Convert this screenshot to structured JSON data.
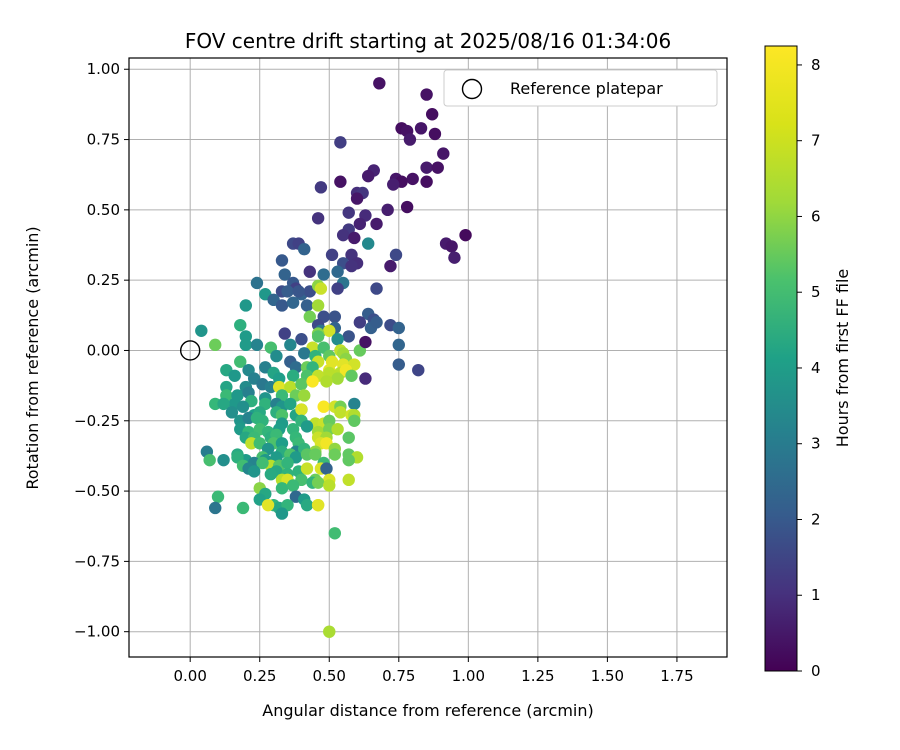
{
  "chart_data": {
    "type": "scatter",
    "title": "FOV centre drift starting at 2025/08/16 01:34:06",
    "xlabel": "Angular distance from reference (arcmin)",
    "ylabel": "Rotation from reference (arcmin)",
    "xlim": [
      -0.22,
      1.93
    ],
    "ylim": [
      -1.09,
      1.04
    ],
    "xticks": [
      "0.00",
      "0.25",
      "0.50",
      "0.75",
      "1.00",
      "1.25",
      "1.50",
      "1.75"
    ],
    "yticks": [
      "1.00",
      "0.75",
      "0.50",
      "0.25",
      "0.00",
      "−0.25",
      "−0.50",
      "−0.75",
      "−1.00"
    ],
    "grid": true,
    "legend": {
      "placement": "top-right",
      "entries": [
        "Reference platepar"
      ]
    },
    "reference_point": {
      "x": 0.0,
      "y": 0.0
    },
    "colorbar": {
      "label": "Hours from first FF file",
      "ticks": [
        "0",
        "1",
        "2",
        "3",
        "4",
        "5",
        "6",
        "7",
        "8"
      ],
      "range": [
        0,
        8.25
      ],
      "colormap": "viridis"
    },
    "points": [
      [
        0.68,
        0.95,
        0.4
      ],
      [
        0.85,
        0.91,
        0.4
      ],
      [
        0.87,
        0.84,
        0.3
      ],
      [
        0.76,
        0.79,
        0.3
      ],
      [
        0.78,
        0.78,
        0.4
      ],
      [
        0.83,
        0.79,
        0.5
      ],
      [
        0.88,
        0.77,
        0.3
      ],
      [
        0.79,
        0.75,
        0.6
      ],
      [
        0.54,
        0.74,
        1.5
      ],
      [
        0.91,
        0.7,
        0.5
      ],
      [
        0.85,
        0.65,
        0.6
      ],
      [
        0.89,
        0.65,
        0.4
      ],
      [
        0.66,
        0.64,
        0.8
      ],
      [
        0.64,
        0.62,
        0.6
      ],
      [
        0.74,
        0.61,
        0.5
      ],
      [
        0.8,
        0.61,
        0.4
      ],
      [
        0.76,
        0.6,
        0.3
      ],
      [
        0.85,
        0.6,
        0.3
      ],
      [
        0.54,
        0.6,
        0.4
      ],
      [
        0.47,
        0.58,
        1.4
      ],
      [
        0.6,
        0.56,
        1.1
      ],
      [
        0.62,
        0.56,
        1.3
      ],
      [
        0.73,
        0.59,
        0.7
      ],
      [
        0.6,
        0.54,
        0.5
      ],
      [
        0.71,
        0.5,
        0.7
      ],
      [
        0.78,
        0.51,
        0.3
      ],
      [
        0.57,
        0.49,
        1.3
      ],
      [
        0.63,
        0.48,
        1.0
      ],
      [
        0.46,
        0.47,
        1.2
      ],
      [
        0.67,
        0.45,
        0.6
      ],
      [
        0.61,
        0.45,
        0.8
      ],
      [
        0.57,
        0.43,
        1.4
      ],
      [
        0.55,
        0.41,
        1.2
      ],
      [
        0.59,
        0.4,
        0.6
      ],
      [
        0.99,
        0.41,
        0.2
      ],
      [
        0.92,
        0.38,
        0.6
      ],
      [
        0.94,
        0.37,
        0.5
      ],
      [
        0.37,
        0.38,
        1.8
      ],
      [
        0.39,
        0.38,
        1.6
      ],
      [
        0.41,
        0.36,
        2.6
      ],
      [
        0.64,
        0.38,
        3.9
      ],
      [
        0.74,
        0.34,
        1.8
      ],
      [
        0.58,
        0.34,
        1.2
      ],
      [
        0.51,
        0.34,
        1.6
      ],
      [
        0.55,
        0.31,
        2.0
      ],
      [
        0.6,
        0.31,
        1.1
      ],
      [
        0.33,
        0.32,
        2.3
      ],
      [
        0.95,
        0.33,
        0.7
      ],
      [
        0.72,
        0.3,
        0.6
      ],
      [
        0.53,
        0.28,
        2.8
      ],
      [
        0.58,
        0.3,
        1.2
      ],
      [
        0.34,
        0.27,
        2.6
      ],
      [
        0.43,
        0.28,
        1.2
      ],
      [
        0.48,
        0.27,
        2.9
      ],
      [
        0.37,
        0.24,
        2.3
      ],
      [
        0.24,
        0.24,
        3.1
      ],
      [
        0.38,
        0.22,
        1.6
      ],
      [
        0.33,
        0.21,
        1.9
      ],
      [
        0.35,
        0.21,
        2.4
      ],
      [
        0.4,
        0.2,
        2.6
      ],
      [
        0.43,
        0.21,
        2.0
      ],
      [
        0.46,
        0.23,
        6.8
      ],
      [
        0.47,
        0.22,
        7.6
      ],
      [
        0.55,
        0.24,
        3.2
      ],
      [
        0.53,
        0.22,
        1.6
      ],
      [
        0.67,
        0.22,
        1.8
      ],
      [
        0.27,
        0.2,
        4.4
      ],
      [
        0.39,
        0.21,
        2.2
      ],
      [
        0.3,
        0.18,
        2.7
      ],
      [
        0.33,
        0.16,
        2.3
      ],
      [
        0.37,
        0.17,
        2.7
      ],
      [
        0.42,
        0.16,
        2.5
      ],
      [
        0.46,
        0.16,
        7.1
      ],
      [
        0.2,
        0.16,
        4.4
      ],
      [
        0.48,
        0.12,
        2.0
      ],
      [
        0.43,
        0.12,
        6.5
      ],
      [
        0.52,
        0.12,
        2.1
      ],
      [
        0.64,
        0.13,
        2.4
      ],
      [
        0.66,
        0.11,
        2.0
      ],
      [
        0.61,
        0.1,
        1.5
      ],
      [
        0.46,
        0.09,
        1.8
      ],
      [
        0.52,
        0.08,
        2.6
      ],
      [
        0.65,
        0.08,
        2.5
      ],
      [
        0.67,
        0.1,
        2.4
      ],
      [
        0.72,
        0.09,
        1.9
      ],
      [
        0.75,
        0.08,
        2.6
      ],
      [
        0.47,
        0.07,
        3.2
      ],
      [
        0.5,
        0.07,
        7.7
      ],
      [
        0.46,
        0.06,
        6.7
      ],
      [
        0.04,
        0.07,
        4.3
      ],
      [
        0.18,
        0.09,
        5.2
      ],
      [
        0.34,
        0.06,
        1.6
      ],
      [
        0.4,
        0.04,
        2.0
      ],
      [
        0.57,
        0.05,
        2.1
      ],
      [
        0.2,
        0.05,
        4.5
      ],
      [
        0.46,
        0.05,
        6.0
      ],
      [
        0.53,
        0.04,
        4.0
      ],
      [
        0.09,
        0.02,
        6.4
      ],
      [
        0.2,
        0.02,
        4.5
      ],
      [
        0.24,
        0.02,
        3.7
      ],
      [
        0.29,
        0.01,
        5.8
      ],
      [
        0.36,
        0.02,
        3.8
      ],
      [
        0.44,
        0.01,
        7.6
      ],
      [
        0.48,
        0.01,
        5.8
      ],
      [
        0.54,
        0.0,
        7.5
      ],
      [
        0.61,
        0.0,
        6.3
      ],
      [
        0.63,
        0.03,
        0.4
      ],
      [
        0.75,
        0.02,
        2.7
      ],
      [
        0.31,
        -0.02,
        4.0
      ],
      [
        0.41,
        -0.01,
        3.3
      ],
      [
        0.45,
        -0.02,
        5.3
      ],
      [
        0.5,
        -0.02,
        6.2
      ],
      [
        0.55,
        -0.01,
        7.1
      ],
      [
        0.56,
        -0.03,
        6.8
      ],
      [
        0.18,
        -0.04,
        5.7
      ],
      [
        0.36,
        -0.04,
        2.5
      ],
      [
        0.46,
        -0.04,
        7.6
      ],
      [
        0.51,
        -0.04,
        7.9
      ],
      [
        0.55,
        -0.05,
        7.9
      ],
      [
        0.59,
        -0.05,
        7.7
      ],
      [
        0.75,
        -0.05,
        2.4
      ],
      [
        0.82,
        -0.07,
        1.7
      ],
      [
        0.13,
        -0.07,
        4.9
      ],
      [
        0.21,
        -0.07,
        3.9
      ],
      [
        0.27,
        -0.06,
        3.6
      ],
      [
        0.38,
        -0.06,
        2.9
      ],
      [
        0.42,
        -0.06,
        6.4
      ],
      [
        0.44,
        -0.06,
        5.4
      ],
      [
        0.5,
        -0.07,
        7.9
      ],
      [
        0.54,
        -0.08,
        7.4
      ],
      [
        0.56,
        -0.07,
        8.1
      ],
      [
        0.16,
        -0.09,
        4.4
      ],
      [
        0.23,
        -0.1,
        3.6
      ],
      [
        0.3,
        -0.08,
        4.8
      ],
      [
        0.32,
        -0.1,
        4.6
      ],
      [
        0.37,
        -0.09,
        5.1
      ],
      [
        0.42,
        -0.09,
        5.9
      ],
      [
        0.46,
        -0.09,
        7.5
      ],
      [
        0.5,
        -0.08,
        7.4
      ],
      [
        0.53,
        -0.1,
        7.1
      ],
      [
        0.58,
        -0.09,
        6.2
      ],
      [
        0.63,
        -0.1,
        1.0
      ],
      [
        0.13,
        -0.13,
        4.8
      ],
      [
        0.2,
        -0.13,
        4.0
      ],
      [
        0.26,
        -0.12,
        3.3
      ],
      [
        0.29,
        -0.13,
        3.6
      ],
      [
        0.32,
        -0.13,
        7.9
      ],
      [
        0.36,
        -0.13,
        7.4
      ],
      [
        0.4,
        -0.12,
        6.1
      ],
      [
        0.44,
        -0.11,
        8.2
      ],
      [
        0.49,
        -0.11,
        7.3
      ],
      [
        0.13,
        -0.16,
        5.6
      ],
      [
        0.17,
        -0.16,
        4.4
      ],
      [
        0.21,
        -0.15,
        3.6
      ],
      [
        0.27,
        -0.17,
        4.3
      ],
      [
        0.33,
        -0.16,
        5.6
      ],
      [
        0.38,
        -0.16,
        6.4
      ],
      [
        0.41,
        -0.16,
        7.0
      ],
      [
        0.16,
        -0.19,
        4.4
      ],
      [
        0.22,
        -0.18,
        5.2
      ],
      [
        0.27,
        -0.19,
        5.3
      ],
      [
        0.31,
        -0.19,
        3.6
      ],
      [
        0.33,
        -0.2,
        4.3
      ],
      [
        0.36,
        -0.19,
        4.8
      ],
      [
        0.4,
        -0.21,
        6.2
      ],
      [
        0.48,
        -0.2,
        8.2
      ],
      [
        0.52,
        -0.2,
        7.7
      ],
      [
        0.54,
        -0.2,
        6.5
      ],
      [
        0.59,
        -0.19,
        3.7
      ],
      [
        0.09,
        -0.19,
        5.5
      ],
      [
        0.12,
        -0.19,
        4.9
      ],
      [
        0.15,
        -0.22,
        4.1
      ],
      [
        0.19,
        -0.2,
        4.1
      ],
      [
        0.23,
        -0.23,
        4.6
      ],
      [
        0.25,
        -0.22,
        5.0
      ],
      [
        0.31,
        -0.22,
        5.2
      ],
      [
        0.33,
        -0.23,
        5.9
      ],
      [
        0.38,
        -0.23,
        4.8
      ],
      [
        0.4,
        -0.21,
        7.8
      ],
      [
        0.54,
        -0.22,
        7.5
      ],
      [
        0.58,
        -0.23,
        7.7
      ],
      [
        0.59,
        -0.23,
        7.3
      ],
      [
        0.18,
        -0.25,
        4.3
      ],
      [
        0.21,
        -0.24,
        3.7
      ],
      [
        0.24,
        -0.24,
        5.3
      ],
      [
        0.26,
        -0.25,
        5.3
      ],
      [
        0.33,
        -0.26,
        4.5
      ],
      [
        0.4,
        -0.25,
        5.4
      ],
      [
        0.45,
        -0.26,
        7.5
      ],
      [
        0.48,
        -0.26,
        7.6
      ],
      [
        0.5,
        -0.25,
        6.3
      ],
      [
        0.59,
        -0.25,
        6.2
      ],
      [
        0.18,
        -0.28,
        4.5
      ],
      [
        0.21,
        -0.29,
        5.5
      ],
      [
        0.25,
        -0.28,
        5.7
      ],
      [
        0.28,
        -0.29,
        5.4
      ],
      [
        0.32,
        -0.28,
        4.6
      ],
      [
        0.37,
        -0.28,
        5.4
      ],
      [
        0.42,
        -0.27,
        4.5
      ],
      [
        0.46,
        -0.29,
        7.1
      ],
      [
        0.5,
        -0.28,
        6.5
      ],
      [
        0.53,
        -0.28,
        7.3
      ],
      [
        0.2,
        -0.31,
        4.9
      ],
      [
        0.23,
        -0.31,
        5.6
      ],
      [
        0.29,
        -0.31,
        5.2
      ],
      [
        0.31,
        -0.3,
        5.6
      ],
      [
        0.38,
        -0.31,
        5.5
      ],
      [
        0.46,
        -0.31,
        7.6
      ],
      [
        0.49,
        -0.31,
        7.1
      ],
      [
        0.57,
        -0.31,
        6.1
      ],
      [
        0.22,
        -0.33,
        7.5
      ],
      [
        0.25,
        -0.33,
        5.7
      ],
      [
        0.3,
        -0.33,
        5.9
      ],
      [
        0.33,
        -0.33,
        4.6
      ],
      [
        0.39,
        -0.33,
        5.6
      ],
      [
        0.47,
        -0.33,
        7.8
      ],
      [
        0.49,
        -0.33,
        8.1
      ],
      [
        0.06,
        -0.36,
        3.5
      ],
      [
        0.28,
        -0.35,
        4.3
      ],
      [
        0.33,
        -0.36,
        5.1
      ],
      [
        0.38,
        -0.36,
        3.8
      ],
      [
        0.41,
        -0.35,
        5.4
      ],
      [
        0.45,
        -0.36,
        6.9
      ],
      [
        0.52,
        -0.35,
        6.9
      ],
      [
        0.17,
        -0.37,
        5.0
      ],
      [
        0.2,
        -0.39,
        4.5
      ],
      [
        0.26,
        -0.38,
        5.8
      ],
      [
        0.31,
        -0.38,
        4.5
      ],
      [
        0.36,
        -0.37,
        5.9
      ],
      [
        0.38,
        -0.38,
        4.5
      ],
      [
        0.42,
        -0.37,
        6.1
      ],
      [
        0.45,
        -0.37,
        6.3
      ],
      [
        0.52,
        -0.37,
        6.4
      ],
      [
        0.57,
        -0.37,
        6.2
      ],
      [
        0.6,
        -0.38,
        7.3
      ],
      [
        0.07,
        -0.39,
        5.8
      ],
      [
        0.12,
        -0.39,
        4.1
      ],
      [
        0.17,
        -0.38,
        5.2
      ],
      [
        0.23,
        -0.4,
        3.7
      ],
      [
        0.27,
        -0.39,
        4.4
      ],
      [
        0.29,
        -0.41,
        7.4
      ],
      [
        0.32,
        -0.41,
        6.0
      ],
      [
        0.35,
        -0.4,
        5.4
      ],
      [
        0.48,
        -0.4,
        5.6
      ],
      [
        0.57,
        -0.39,
        6.2
      ],
      [
        0.19,
        -0.41,
        5.7
      ],
      [
        0.21,
        -0.42,
        3.8
      ],
      [
        0.26,
        -0.4,
        5.7
      ],
      [
        0.31,
        -0.43,
        4.9
      ],
      [
        0.35,
        -0.44,
        5.3
      ],
      [
        0.39,
        -0.43,
        5.3
      ],
      [
        0.42,
        -0.42,
        7.6
      ],
      [
        0.47,
        -0.42,
        7.8
      ],
      [
        0.49,
        -0.42,
        2.6
      ],
      [
        0.23,
        -0.43,
        4.3
      ],
      [
        0.29,
        -0.44,
        5.0
      ],
      [
        0.33,
        -0.46,
        7.4
      ],
      [
        0.35,
        -0.46,
        7.8
      ],
      [
        0.4,
        -0.46,
        5.8
      ],
      [
        0.45,
        -0.46,
        6.4
      ],
      [
        0.5,
        -0.46,
        7.8
      ],
      [
        0.57,
        -0.46,
        7.5
      ],
      [
        0.25,
        -0.49,
        6.8
      ],
      [
        0.27,
        -0.51,
        4.9
      ],
      [
        0.33,
        -0.49,
        5.5
      ],
      [
        0.37,
        -0.48,
        5.6
      ],
      [
        0.38,
        -0.52,
        2.8
      ],
      [
        0.44,
        -0.47,
        5.4
      ],
      [
        0.46,
        -0.47,
        6.5
      ],
      [
        0.5,
        -0.48,
        7.4
      ],
      [
        0.1,
        -0.52,
        5.6
      ],
      [
        0.25,
        -0.53,
        4.7
      ],
      [
        0.3,
        -0.55,
        5.4
      ],
      [
        0.32,
        -0.56,
        4.9
      ],
      [
        0.35,
        -0.55,
        5.4
      ],
      [
        0.41,
        -0.53,
        4.5
      ],
      [
        0.42,
        -0.55,
        5.0
      ],
      [
        0.46,
        -0.55,
        7.7
      ],
      [
        0.46,
        -0.55,
        7.9
      ],
      [
        0.09,
        -0.56,
        3.2
      ],
      [
        0.19,
        -0.56,
        5.6
      ],
      [
        0.28,
        -0.55,
        7.9
      ],
      [
        0.33,
        -0.58,
        4.4
      ],
      [
        0.52,
        -0.65,
        5.7
      ],
      [
        0.5,
        -1.0,
        7.2
      ]
    ]
  }
}
